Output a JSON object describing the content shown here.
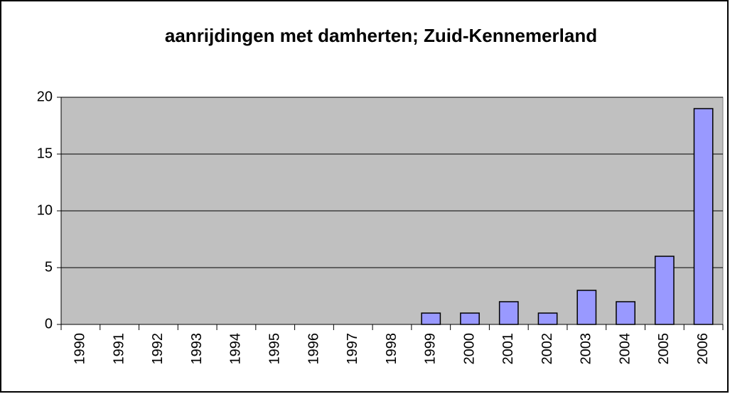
{
  "chart_data": {
    "type": "bar",
    "title": "aanrijdingen met damherten; Zuid-Kennemerland",
    "categories": [
      "1990",
      "1991",
      "1992",
      "1993",
      "1994",
      "1995",
      "1996",
      "1997",
      "1998",
      "1999",
      "2000",
      "2001",
      "2002",
      "2003",
      "2004",
      "2005",
      "2006"
    ],
    "values": [
      0,
      0,
      0,
      0,
      0,
      0,
      0,
      0,
      0,
      1,
      1,
      2,
      1,
      3,
      2,
      6,
      19
    ],
    "color": "#9999ff",
    "ylim": [
      0,
      20
    ],
    "yticks": [
      0,
      5,
      10,
      15,
      20
    ],
    "grid": true
  }
}
